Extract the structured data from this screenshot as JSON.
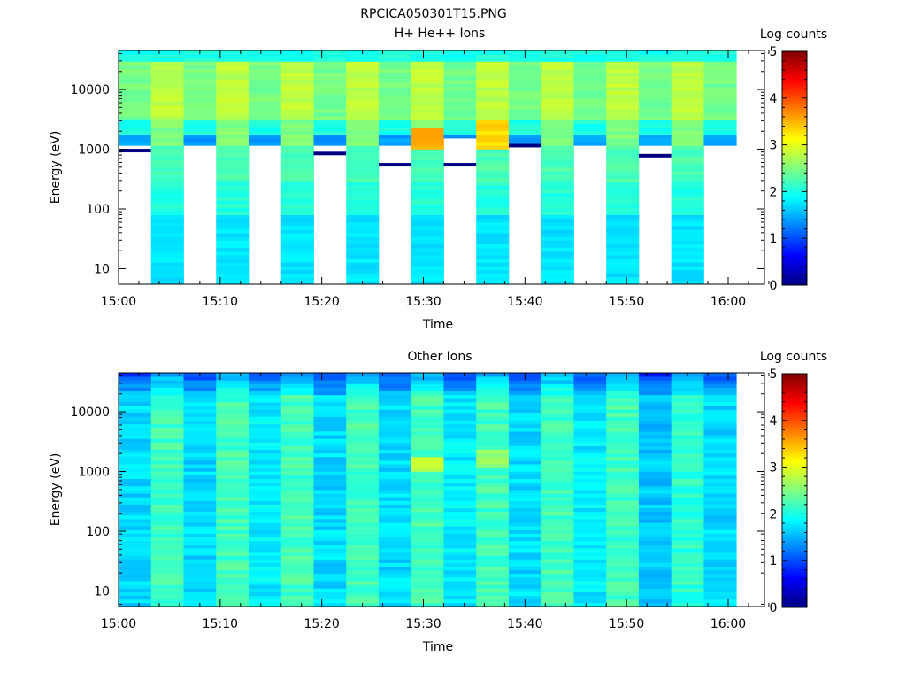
{
  "figure_title": "RPCICA050301T15.PNG",
  "chart_data": [
    {
      "type": "heatmap",
      "title": "H+ He++ Ions",
      "xlabel": "Time",
      "ylabel": "Energy (eV)",
      "x_ticks": [
        "15:00",
        "15:10",
        "15:20",
        "15:30",
        "15:40",
        "15:50",
        "16:00"
      ],
      "x_range_minutes": [
        0,
        64
      ],
      "y_ticks": [
        "10",
        "100",
        "1000",
        "10000"
      ],
      "y_scale": "log",
      "ylim": [
        5.5,
        45000
      ],
      "colorbar_label": "Log counts",
      "colorbar_ticks": [
        "0",
        "1",
        "2",
        "3",
        "4",
        "5"
      ],
      "colorbar_range": [
        0,
        5
      ],
      "colormap": "jet",
      "columns": [
        {
          "start": 0.0,
          "end": 3.2,
          "low_cut": 1200,
          "line_at": 950
        },
        {
          "start": 3.2,
          "end": 6.4,
          "low_cut": null,
          "line_at": null
        },
        {
          "start": 6.4,
          "end": 9.6,
          "low_cut": 1200,
          "line_at": null
        },
        {
          "start": 9.6,
          "end": 12.8,
          "low_cut": null,
          "line_at": null
        },
        {
          "start": 12.8,
          "end": 16.0,
          "low_cut": 1200,
          "line_at": null
        },
        {
          "start": 16.0,
          "end": 19.2,
          "low_cut": null,
          "line_at": null
        },
        {
          "start": 19.2,
          "end": 22.4,
          "low_cut": 1200,
          "line_at": 850
        },
        {
          "start": 22.4,
          "end": 25.6,
          "low_cut": null,
          "line_at": null
        },
        {
          "start": 25.6,
          "end": 28.8,
          "low_cut": 1200,
          "line_at": 550
        },
        {
          "start": 28.8,
          "end": 32.0,
          "low_cut": null,
          "line_at": null,
          "hot": "1000-2500 eV ~3.5"
        },
        {
          "start": 32.0,
          "end": 35.2,
          "low_cut": 1500,
          "line_at": 550
        },
        {
          "start": 35.2,
          "end": 38.4,
          "low_cut": null,
          "line_at": null,
          "hot": "1000-3000 eV ~3.3"
        },
        {
          "start": 38.4,
          "end": 41.6,
          "low_cut": 1200,
          "line_at": 1150
        },
        {
          "start": 41.6,
          "end": 44.8,
          "low_cut": null,
          "line_at": null
        },
        {
          "start": 44.8,
          "end": 48.0,
          "low_cut": 1200,
          "line_at": null
        },
        {
          "start": 48.0,
          "end": 51.2,
          "low_cut": null,
          "line_at": null
        },
        {
          "start": 51.2,
          "end": 54.4,
          "low_cut": 1200,
          "line_at": 780
        },
        {
          "start": 54.4,
          "end": 57.6,
          "low_cut": null,
          "line_at": null
        },
        {
          "start": 57.6,
          "end": 60.8,
          "low_cut": 1200,
          "line_at": null
        }
      ]
    },
    {
      "type": "heatmap",
      "title": "Other Ions",
      "xlabel": "Time",
      "ylabel": "Energy (eV)",
      "x_ticks": [
        "15:00",
        "15:10",
        "15:20",
        "15:30",
        "15:40",
        "15:50",
        "16:00"
      ],
      "x_range_minutes": [
        0,
        64
      ],
      "y_ticks": [
        "10",
        "100",
        "1000",
        "10000"
      ],
      "y_scale": "log",
      "ylim": [
        5.5,
        45000
      ],
      "colorbar_label": "Log counts",
      "colorbar_ticks": [
        "0",
        "1",
        "2",
        "3",
        "4",
        "5"
      ],
      "colorbar_range": [
        0,
        5
      ],
      "colormap": "jet",
      "columns": [
        {
          "start": 0.0,
          "end": 3.2,
          "base": 1.7
        },
        {
          "start": 3.2,
          "end": 6.4,
          "base": 2.2
        },
        {
          "start": 6.4,
          "end": 9.6,
          "base": 1.7
        },
        {
          "start": 9.6,
          "end": 12.8,
          "base": 2.2
        },
        {
          "start": 12.8,
          "end": 16.0,
          "base": 1.8
        },
        {
          "start": 16.0,
          "end": 19.2,
          "base": 2.2
        },
        {
          "start": 19.2,
          "end": 22.4,
          "base": 1.7
        },
        {
          "start": 22.4,
          "end": 25.6,
          "base": 2.2
        },
        {
          "start": 25.6,
          "end": 28.8,
          "base": 1.7
        },
        {
          "start": 28.8,
          "end": 32.0,
          "base": 2.2,
          "hot": "1000-1800 eV ~2.8"
        },
        {
          "start": 32.0,
          "end": 35.2,
          "base": 1.8
        },
        {
          "start": 35.2,
          "end": 38.4,
          "base": 2.2,
          "hot": "1200-2200 eV ~2.6"
        },
        {
          "start": 38.4,
          "end": 41.6,
          "base": 1.7
        },
        {
          "start": 41.6,
          "end": 44.8,
          "base": 2.2
        },
        {
          "start": 44.8,
          "end": 48.0,
          "base": 1.8
        },
        {
          "start": 48.0,
          "end": 51.2,
          "base": 2.2
        },
        {
          "start": 51.2,
          "end": 54.4,
          "base": 1.6
        },
        {
          "start": 54.4,
          "end": 57.6,
          "base": 2.1
        },
        {
          "start": 57.6,
          "end": 60.8,
          "base": 1.7
        }
      ]
    }
  ]
}
